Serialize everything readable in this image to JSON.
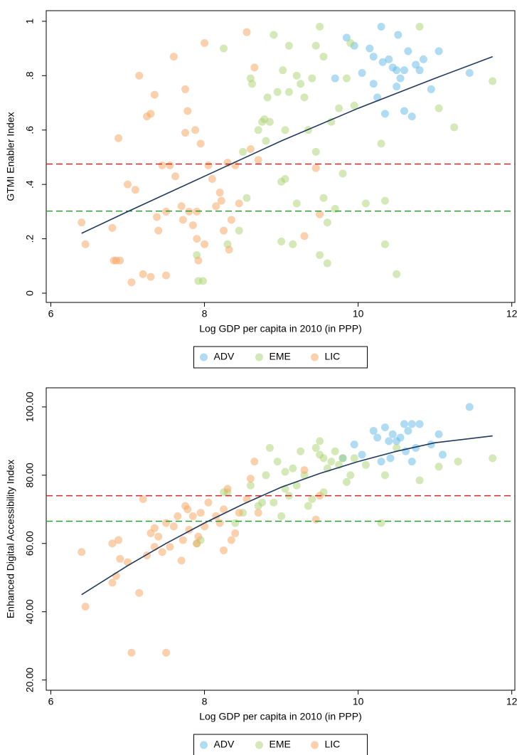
{
  "chart_data": [
    {
      "type": "scatter",
      "xlabel": "Log GDP per capita in 2010 (in PPP)",
      "ylabel": "GTMI Enabler Index",
      "xlim": [
        5.94,
        12.04
      ],
      "ylim": [
        -0.034,
        1.039
      ],
      "xticks": [
        6,
        8,
        10,
        12
      ],
      "yticks": [
        0,
        {
          "value": 0.2,
          "label": ".2"
        },
        {
          "value": 0.4,
          "label": ".4"
        },
        {
          "value": 0.6,
          "label": ".6"
        },
        {
          "value": 0.8,
          "label": ".8"
        },
        1
      ],
      "reference_lines": [
        {
          "value": 0.475,
          "color": "#d62728"
        },
        {
          "value": 0.302,
          "color": "#2ca02c"
        }
      ],
      "fit": {
        "color": "#1f3a5f",
        "x": [
          6.4,
          7,
          8,
          9,
          10,
          11,
          11.75
        ],
        "values": [
          0.22,
          0.3,
          0.43,
          0.56,
          0.68,
          0.79,
          0.87
        ]
      },
      "series": [
        {
          "name": "ADV",
          "color": "#5fb9e6",
          "x": [
            9.7,
            9.85,
            9.95,
            10.05,
            10.15,
            10.2,
            10.2,
            10.25,
            10.3,
            10.32,
            10.35,
            10.4,
            10.45,
            10.5,
            10.5,
            10.52,
            10.55,
            10.6,
            10.6,
            10.65,
            10.7,
            10.75,
            10.8,
            10.85,
            10.95,
            11.05,
            11.45
          ],
          "values": [
            0.79,
            0.94,
            0.91,
            0.81,
            0.9,
            0.87,
            0.77,
            0.72,
            0.98,
            0.85,
            0.66,
            0.86,
            0.83,
            0.82,
            0.76,
            0.95,
            0.79,
            0.82,
            0.67,
            0.89,
            0.65,
            0.84,
            0.82,
            0.86,
            0.75,
            0.89,
            0.81
          ]
        },
        {
          "name": "EME",
          "color": "#a9d46f",
          "x": [
            7.9,
            7.92,
            7.98,
            8.25,
            8.3,
            8.45,
            8.5,
            8.55,
            8.6,
            8.62,
            8.7,
            8.75,
            8.78,
            8.8,
            8.82,
            8.85,
            8.9,
            8.95,
            9.0,
            9.0,
            9.02,
            9.05,
            9.05,
            9.1,
            9.1,
            9.15,
            9.2,
            9.2,
            9.25,
            9.3,
            9.35,
            9.4,
            9.45,
            9.45,
            9.5,
            9.5,
            9.55,
            9.55,
            9.6,
            9.6,
            9.65,
            9.7,
            9.75,
            9.8,
            9.85,
            9.9,
            9.95,
            10.1,
            10.3,
            10.35,
            10.35,
            10.5,
            10.8,
            11.05,
            11.25,
            11.75
          ],
          "values": [
            0.14,
            0.045,
            0.045,
            0.9,
            0.18,
            0.23,
            0.52,
            0.35,
            0.79,
            0.77,
            0.6,
            0.63,
            0.64,
            0.56,
            0.72,
            0.63,
            0.95,
            0.74,
            0.41,
            0.19,
            0.82,
            0.6,
            0.42,
            0.74,
            0.91,
            0.18,
            0.33,
            0.8,
            0.77,
            0.72,
            0.6,
            0.79,
            0.91,
            0.52,
            0.98,
            0.14,
            0.35,
            0.87,
            0.26,
            0.11,
            0.63,
            0.31,
            0.68,
            0.44,
            0.79,
            0.92,
            0.69,
            0.33,
            0.55,
            0.18,
            0.34,
            0.07,
            0.98,
            0.68,
            0.61,
            0.78
          ]
        },
        {
          "name": "LIC",
          "color": "#f7a35c",
          "x": [
            6.4,
            6.45,
            6.8,
            6.82,
            6.85,
            6.88,
            6.9,
            7.0,
            7.05,
            7.1,
            7.15,
            7.2,
            7.25,
            7.3,
            7.3,
            7.35,
            7.38,
            7.4,
            7.45,
            7.5,
            7.5,
            7.55,
            7.6,
            7.62,
            7.7,
            7.72,
            7.75,
            7.75,
            7.78,
            7.8,
            7.85,
            7.88,
            7.9,
            7.9,
            7.92,
            7.95,
            8.0,
            8.0,
            8.05,
            8.1,
            8.15,
            8.2,
            8.22,
            8.25,
            8.3,
            8.32,
            8.35,
            8.4,
            8.45,
            8.55,
            8.6,
            8.65,
            8.7,
            9.3,
            9.45,
            9.5
          ],
          "values": [
            0.26,
            0.18,
            0.24,
            0.12,
            0.12,
            0.57,
            0.12,
            0.4,
            0.04,
            0.38,
            0.8,
            0.07,
            0.65,
            0.66,
            0.06,
            0.73,
            0.28,
            0.23,
            0.47,
            0.3,
            0.065,
            0.47,
            0.87,
            0.43,
            0.32,
            0.27,
            0.59,
            0.75,
            0.67,
            0.3,
            0.25,
            0.6,
            0.2,
            0.3,
            0.12,
            0.55,
            0.92,
            0.18,
            0.47,
            0.42,
            0.32,
            0.37,
            0.34,
            0.23,
            0.48,
            0.16,
            0.27,
            0.47,
            0.33,
            0.96,
            0.53,
            0.83,
            0.49,
            0.21,
            0.46,
            0.29
          ]
        }
      ]
    },
    {
      "type": "scatter",
      "xlabel": "Log GDP per capita in 2010 (in PPP)",
      "ylabel": "Enhanced Digital Accessibility Index",
      "xlim": [
        5.94,
        12.04
      ],
      "ylim": [
        17,
        105.6
      ],
      "xticks": [
        6,
        8,
        10,
        12
      ],
      "yticks": [
        {
          "value": 20,
          "label": "20.00"
        },
        {
          "value": 40,
          "label": "40.00"
        },
        {
          "value": 60,
          "label": "60.00"
        },
        {
          "value": 80,
          "label": "80.00"
        },
        {
          "value": 100,
          "label": "100.00"
        }
      ],
      "reference_lines": [
        {
          "value": 74,
          "color": "#d62728"
        },
        {
          "value": 66.5,
          "color": "#2ca02c"
        }
      ],
      "fit": {
        "color": "#1f3a5f",
        "x": [
          6.4,
          7,
          7.5,
          8,
          8.5,
          9,
          9.5,
          10,
          10.5,
          11,
          11.75
        ],
        "values": [
          45,
          53.5,
          60,
          66,
          71.5,
          76.5,
          80.5,
          84,
          87,
          89.5,
          91.5
        ]
      },
      "series": [
        {
          "name": "ADV",
          "color": "#5fb9e6",
          "x": [
            9.8,
            9.95,
            10.05,
            10.2,
            10.25,
            10.3,
            10.35,
            10.4,
            10.42,
            10.45,
            10.5,
            10.55,
            10.6,
            10.62,
            10.65,
            10.7,
            10.7,
            10.75,
            10.8,
            10.95,
            11.05,
            11.1,
            11.45
          ],
          "values": [
            85,
            89,
            86,
            93,
            91,
            84,
            94,
            90,
            85,
            92,
            90,
            91,
            95,
            87,
            93,
            95,
            84,
            88,
            95,
            89,
            92,
            86,
            100
          ]
        },
        {
          "name": "EME",
          "color": "#a9d46f",
          "x": [
            7.9,
            7.95,
            8.25,
            8.3,
            8.4,
            8.5,
            8.6,
            8.7,
            8.75,
            8.8,
            8.85,
            8.9,
            8.95,
            9.0,
            9.05,
            9.05,
            9.1,
            9.15,
            9.2,
            9.25,
            9.3,
            9.35,
            9.4,
            9.45,
            9.5,
            9.5,
            9.55,
            9.55,
            9.6,
            9.65,
            9.7,
            9.75,
            9.8,
            9.85,
            9.9,
            9.95,
            10.1,
            10.3,
            10.35,
            10.5,
            10.8,
            11.05,
            11.3,
            11.75
          ],
          "values": [
            60,
            61,
            75,
            75,
            66,
            69,
            77,
            71,
            72,
            80,
            88,
            72,
            84,
            68,
            81,
            76,
            74,
            82,
            77,
            87,
            80,
            71,
            73,
            88,
            90,
            86,
            85,
            75,
            82,
            84,
            87,
            83,
            85,
            78,
            80,
            85,
            83,
            66,
            80,
            88,
            78.5,
            82.5,
            84,
            85
          ]
        },
        {
          "name": "LIC",
          "color": "#f7a35c",
          "x": [
            6.4,
            6.45,
            6.8,
            6.8,
            6.85,
            6.88,
            6.9,
            7.0,
            7.05,
            7.15,
            7.2,
            7.25,
            7.3,
            7.35,
            7.35,
            7.4,
            7.45,
            7.5,
            7.5,
            7.55,
            7.6,
            7.65,
            7.7,
            7.72,
            7.75,
            7.78,
            7.8,
            7.85,
            7.9,
            7.92,
            7.95,
            8.0,
            8.05,
            8.15,
            8.2,
            8.25,
            8.25,
            8.3,
            8.35,
            8.4,
            8.45,
            8.55,
            8.6,
            8.65,
            8.7,
            9.3,
            9.45,
            9.5
          ],
          "values": [
            57.5,
            41.5,
            60,
            48.5,
            50.5,
            61,
            55.5,
            54.5,
            28,
            45.5,
            73,
            56.5,
            63,
            64.5,
            59,
            62,
            57.5,
            28,
            66,
            59,
            65,
            68,
            55,
            61,
            71,
            70,
            64,
            68,
            60,
            62,
            69,
            65,
            72,
            68,
            66,
            70,
            58,
            76,
            61,
            63,
            69,
            73,
            79,
            84,
            69,
            81.5,
            67,
            74
          ]
        }
      ]
    }
  ]
}
